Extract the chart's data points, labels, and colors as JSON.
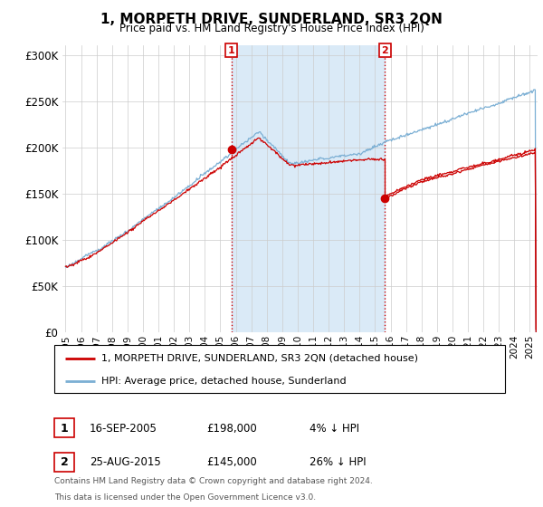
{
  "title": "1, MORPETH DRIVE, SUNDERLAND, SR3 2QN",
  "subtitle": "Price paid vs. HM Land Registry's House Price Index (HPI)",
  "ylim": [
    0,
    310000
  ],
  "yticks": [
    0,
    50000,
    100000,
    150000,
    200000,
    250000,
    300000
  ],
  "xlim_start": 1994.8,
  "xlim_end": 2025.5,
  "sale1_date": 2005.71,
  "sale1_price": 198000,
  "sale1_label": "1",
  "sale2_date": 2015.64,
  "sale2_price": 145000,
  "sale2_label": "2",
  "red_color": "#cc0000",
  "blue_color": "#7bafd4",
  "shade_color": "#daeaf7",
  "legend_entry1": "1, MORPETH DRIVE, SUNDERLAND, SR3 2QN (detached house)",
  "legend_entry2": "HPI: Average price, detached house, Sunderland",
  "table_row1": [
    "1",
    "16-SEP-2005",
    "£198,000",
    "4% ↓ HPI"
  ],
  "table_row2": [
    "2",
    "25-AUG-2015",
    "£145,000",
    "26% ↓ HPI"
  ],
  "footnote1": "Contains HM Land Registry data © Crown copyright and database right 2024.",
  "footnote2": "This data is licensed under the Open Government Licence v3.0.",
  "background_color": "#ffffff"
}
